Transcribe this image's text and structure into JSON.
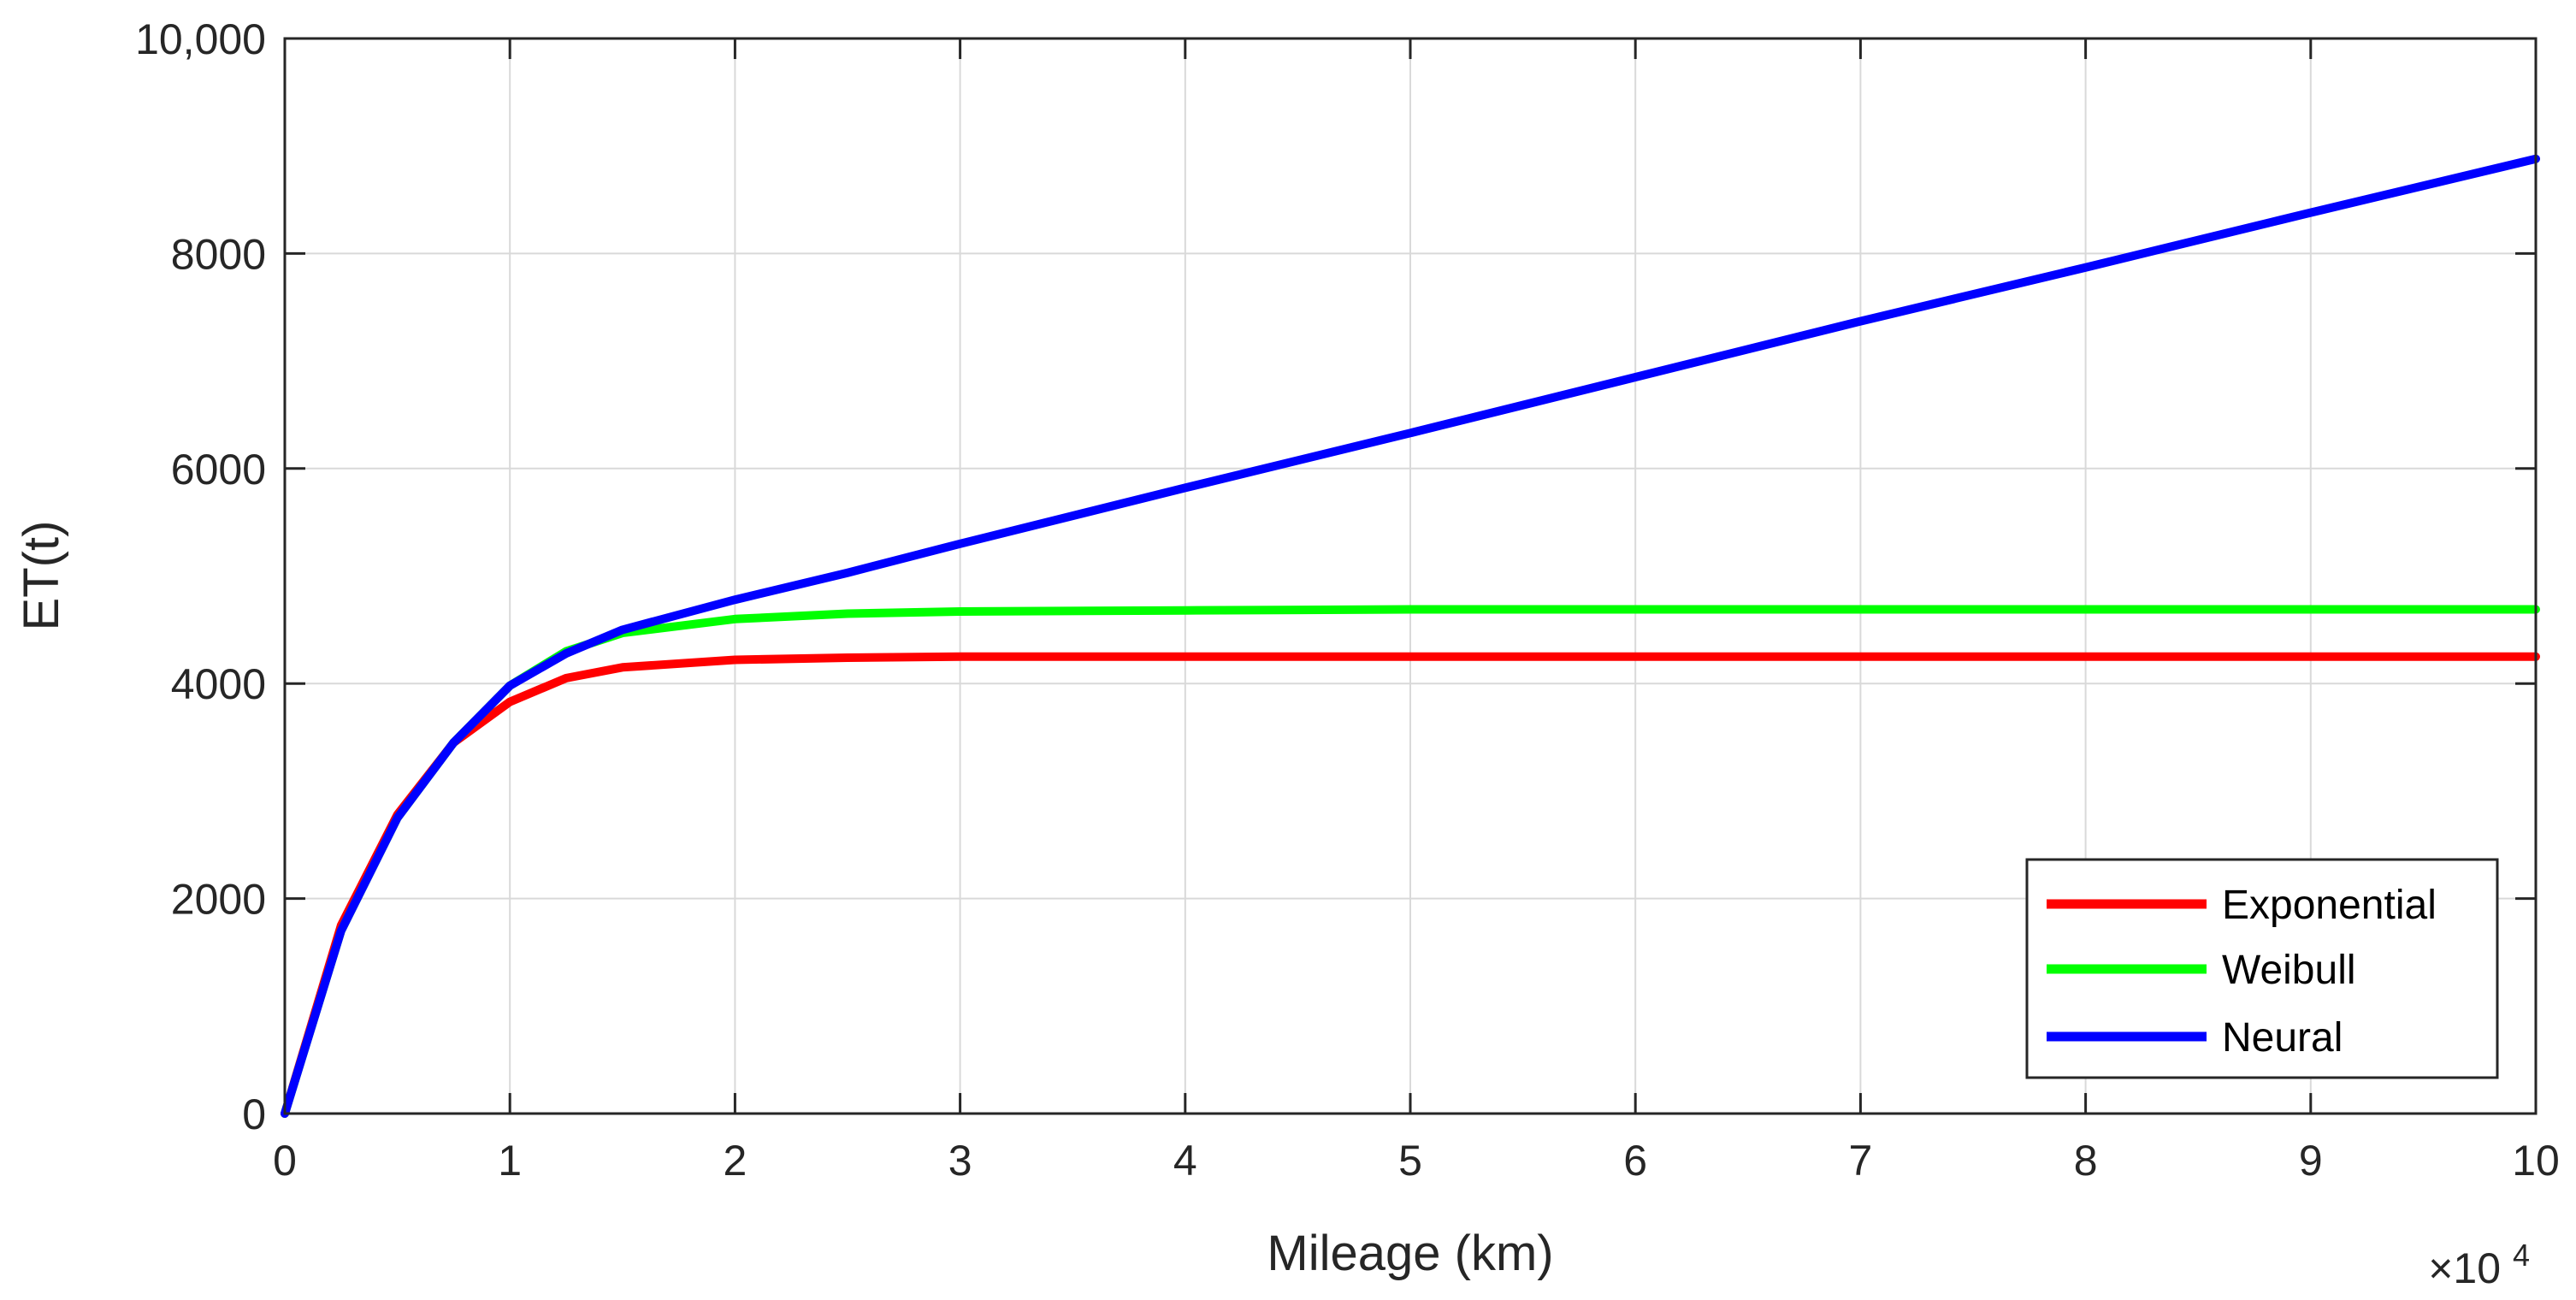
{
  "chart_data": {
    "type": "line",
    "xlabel": "Mileage (km)",
    "ylabel": "ET(t)",
    "x_multiplier_label": {
      "base": "×10",
      "exponent": "4"
    },
    "xlim": [
      0,
      10
    ],
    "ylim": [
      0,
      10000
    ],
    "x_ticks": [
      "0",
      "1",
      "2",
      "3",
      "4",
      "5",
      "6",
      "7",
      "8",
      "9",
      "10"
    ],
    "y_ticks": [
      {
        "value": 0,
        "label": "0"
      },
      {
        "value": 2000,
        "label": "2000"
      },
      {
        "value": 4000,
        "label": "4000"
      },
      {
        "value": 6000,
        "label": "6000"
      },
      {
        "value": 8000,
        "label": "8000"
      },
      {
        "value": 10000,
        "label": "10,000"
      }
    ],
    "grid": true,
    "legend_position": "bottom-right",
    "x": [
      0,
      0.25,
      0.5,
      0.75,
      1,
      1.25,
      1.5,
      2,
      2.5,
      3,
      4,
      5,
      6,
      7,
      8,
      9,
      10
    ],
    "series": [
      {
        "name": "Exponential",
        "color": "#ff0000",
        "values": [
          0,
          1750,
          2780,
          3450,
          3830,
          4050,
          4150,
          4220,
          4240,
          4250,
          4250,
          4250,
          4250,
          4250,
          4250,
          4250,
          4250
        ]
      },
      {
        "name": "Weibull",
        "color": "#00ff00",
        "values": [
          0,
          1700,
          2750,
          3450,
          3980,
          4300,
          4470,
          4600,
          4650,
          4670,
          4680,
          4690,
          4690,
          4690,
          4690,
          4690,
          4690
        ]
      },
      {
        "name": "Neural",
        "color": "#0000ff",
        "values": [
          0,
          1700,
          2750,
          3450,
          3980,
          4280,
          4500,
          4780,
          5030,
          5300,
          5820,
          6330,
          6850,
          7370,
          7870,
          8380,
          8880
        ]
      }
    ]
  }
}
